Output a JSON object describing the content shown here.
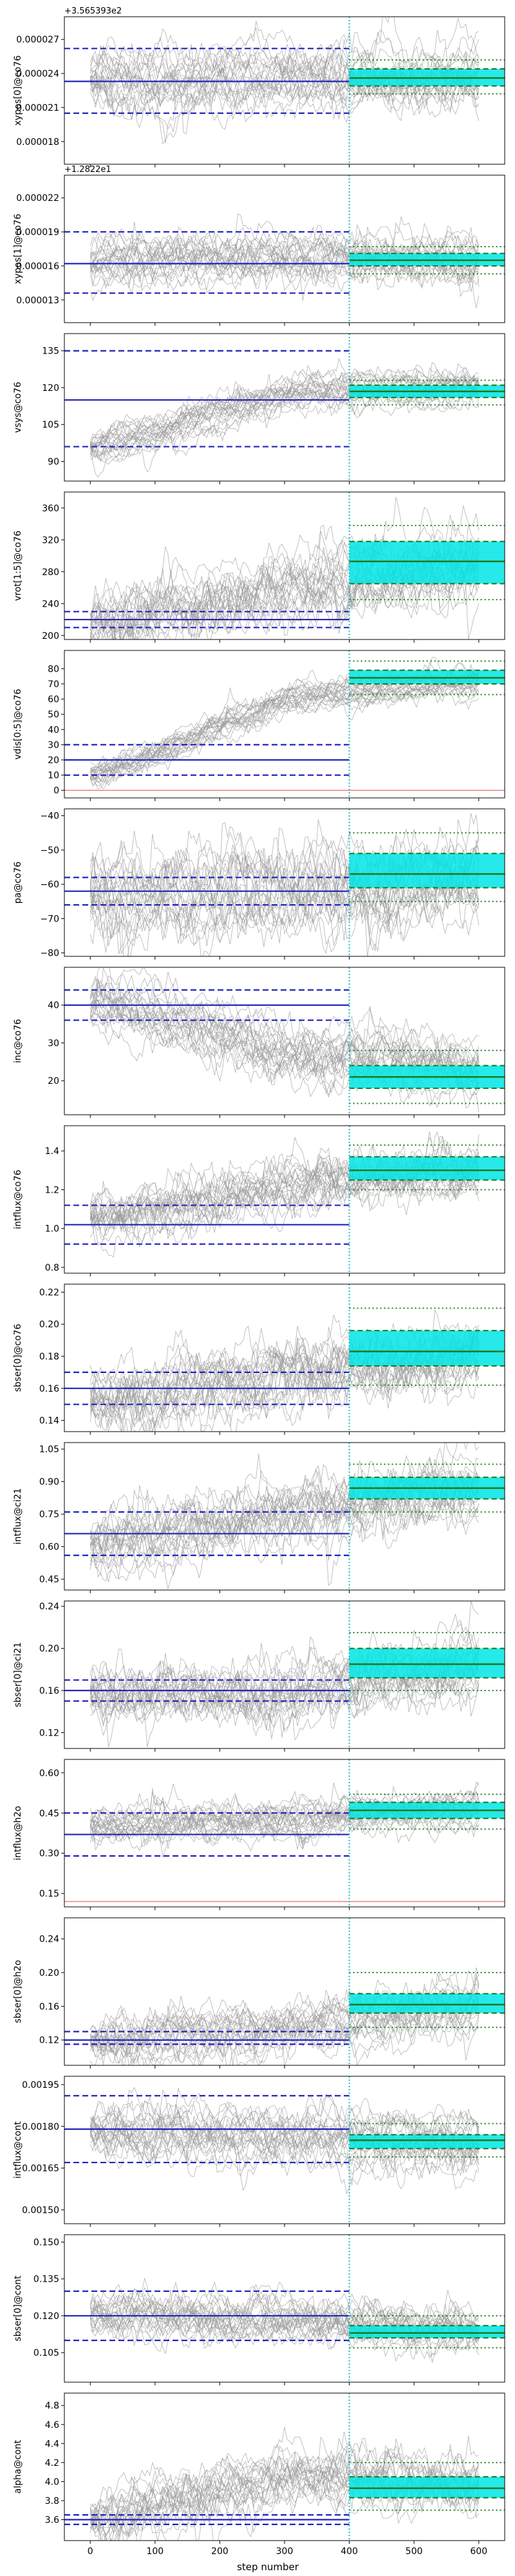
{
  "figure": {
    "xlabel": "step number",
    "xlim": [
      -40,
      640
    ],
    "xticks": [
      0,
      100,
      200,
      300,
      400,
      500,
      600
    ],
    "burnin_step": 400,
    "colors": {
      "trace": "#999999",
      "prior": "#2222bb",
      "posterior_fill": "#00e5e5",
      "posterior_line": "#1a7a1a",
      "burnin_line": "#17becf",
      "prior_floor": "#f08080"
    }
  },
  "chart_data": [
    {
      "type": "line",
      "ylabel": "xypos[0]@co76",
      "offset_text": "+3.565393e2",
      "ylim": [
        1.6e-05,
        2.9e-05
      ],
      "yticks": [
        1.8e-05,
        2.1e-05,
        2.4e-05,
        2.7e-05
      ],
      "ytick_labels": [
        "0.000018",
        "0.000021",
        "0.000024",
        "0.000027"
      ],
      "start": 2.35e-05,
      "mid": 2.36e-05,
      "end": 2.36e-05,
      "noise": 1.1e-06,
      "prior": {
        "center": 2.33e-05,
        "lo": 2.05e-05,
        "hi": 2.62e-05
      },
      "posterior": {
        "center": 2.36e-05,
        "lo1": 2.29e-05,
        "hi1": 2.44e-05,
        "lo2": 2.22e-05,
        "hi2": 2.52e-05
      }
    },
    {
      "type": "line",
      "ylabel": "xypos[1]@co76",
      "offset_text": "+1.2822e1",
      "ylim": [
        1.1e-05,
        2.4e-05
      ],
      "yticks": [
        1.3e-05,
        1.6e-05,
        1.9e-05,
        2.2e-05
      ],
      "ytick_labels": [
        "0.000013",
        "0.000016",
        "0.000019",
        "0.000022"
      ],
      "start": 1.62e-05,
      "mid": 1.66e-05,
      "end": 1.65e-05,
      "noise": 9e-07,
      "prior": {
        "center": 1.62e-05,
        "lo": 1.36e-05,
        "hi": 1.9e-05
      },
      "posterior": {
        "center": 1.65e-05,
        "lo1": 1.6e-05,
        "hi1": 1.71e-05,
        "lo2": 1.53e-05,
        "hi2": 1.77e-05
      }
    },
    {
      "type": "line",
      "ylabel": "vsys@co76",
      "offset_text": "",
      "ylim": [
        82,
        142
      ],
      "yticks": [
        90,
        105,
        120,
        135
      ],
      "ytick_labels": [
        "90",
        "105",
        "120",
        "135"
      ],
      "start": 95,
      "mid": 118,
      "end": 119,
      "noise": 3,
      "prior": {
        "center": 115,
        "lo": 96,
        "hi": 135
      },
      "posterior": {
        "center": 118.5,
        "lo1": 116,
        "hi1": 121,
        "lo2": 113,
        "hi2": 123
      }
    },
    {
      "type": "line",
      "ylabel": "vrot[1:5]@co76",
      "offset_text": "",
      "ylim": [
        195,
        380
      ],
      "yticks": [
        200,
        240,
        280,
        320,
        360
      ],
      "ytick_labels": [
        "200",
        "240",
        "280",
        "320",
        "360"
      ],
      "start": 215,
      "mid": 262,
      "end": 290,
      "noise": 18,
      "prior": {
        "center": 220,
        "lo": 210,
        "hi": 230
      },
      "posterior": {
        "center": 293,
        "lo1": 265,
        "hi1": 318,
        "lo2": 245,
        "hi2": 338
      }
    },
    {
      "type": "line",
      "ylabel": "vdis[0:5]@co76",
      "offset_text": "",
      "ylim": [
        -5,
        92
      ],
      "yticks": [
        0,
        10,
        20,
        30,
        40,
        50,
        60,
        70,
        80
      ],
      "ytick_labels": [
        "0",
        "10",
        "20",
        "30",
        "40",
        "50",
        "60",
        "70",
        "80"
      ],
      "start": 10,
      "mid": 62,
      "end": 72,
      "noise": 4,
      "prior": {
        "center": 20,
        "lo": 10,
        "hi": 30
      },
      "posterior": {
        "center": 74,
        "lo1": 70,
        "hi1": 79,
        "lo2": 63,
        "hi2": 85
      },
      "floor": 0
    },
    {
      "type": "line",
      "ylabel": "pa@co76",
      "offset_text": "",
      "ylim": [
        -81,
        -38
      ],
      "yticks": [
        -80,
        -70,
        -60,
        -50,
        -40
      ],
      "ytick_labels": [
        "−80",
        "−70",
        "−60",
        "−50",
        "−40"
      ],
      "start": -62,
      "mid": -60,
      "end": -58,
      "noise": 5,
      "prior": {
        "center": -62,
        "lo": -66,
        "hi": -58
      },
      "posterior": {
        "center": -57,
        "lo1": -61,
        "hi1": -51,
        "lo2": -65,
        "hi2": -45
      }
    },
    {
      "type": "line",
      "ylabel": "inc@co76",
      "offset_text": "",
      "ylim": [
        11,
        50
      ],
      "yticks": [
        20,
        30,
        40
      ],
      "ytick_labels": [
        "20",
        "30",
        "40"
      ],
      "start": 40,
      "mid": 27,
      "end": 22,
      "noise": 3,
      "prior": {
        "center": 40,
        "lo": 36,
        "hi": 44
      },
      "posterior": {
        "center": 21,
        "lo1": 18,
        "hi1": 24,
        "lo2": 14,
        "hi2": 28
      }
    },
    {
      "type": "line",
      "ylabel": "intflux@co76",
      "offset_text": "",
      "ylim": [
        0.77,
        1.53
      ],
      "yticks": [
        0.8,
        1.0,
        1.2,
        1.4
      ],
      "ytick_labels": [
        "0.8",
        "1.0",
        "1.2",
        "1.4"
      ],
      "start": 1.05,
      "mid": 1.22,
      "end": 1.31,
      "noise": 0.06,
      "prior": {
        "center": 1.02,
        "lo": 0.92,
        "hi": 1.12
      },
      "posterior": {
        "center": 1.3,
        "lo1": 1.25,
        "hi1": 1.37,
        "lo2": 1.2,
        "hi2": 1.43
      }
    },
    {
      "type": "line",
      "ylabel": "sbser[0]@co76",
      "offset_text": "",
      "ylim": [
        0.133,
        0.225
      ],
      "yticks": [
        0.14,
        0.16,
        0.18,
        0.2,
        0.22
      ],
      "ytick_labels": [
        "0.14",
        "0.16",
        "0.18",
        "0.20",
        "0.22"
      ],
      "start": 0.155,
      "mid": 0.172,
      "end": 0.182,
      "noise": 0.009,
      "prior": {
        "center": 0.16,
        "lo": 0.15,
        "hi": 0.17
      },
      "posterior": {
        "center": 0.183,
        "lo1": 0.174,
        "hi1": 0.196,
        "lo2": 0.162,
        "hi2": 0.21
      }
    },
    {
      "type": "line",
      "ylabel": "intflux@ci21",
      "offset_text": "",
      "ylim": [
        0.4,
        1.08
      ],
      "yticks": [
        0.45,
        0.6,
        0.75,
        0.9,
        1.05
      ],
      "ytick_labels": [
        "0.45",
        "0.60",
        "0.75",
        "0.90",
        "1.05"
      ],
      "start": 0.6,
      "mid": 0.76,
      "end": 0.87,
      "noise": 0.06,
      "prior": {
        "center": 0.66,
        "lo": 0.56,
        "hi": 0.76
      },
      "posterior": {
        "center": 0.87,
        "lo1": 0.82,
        "hi1": 0.92,
        "lo2": 0.76,
        "hi2": 0.98
      }
    },
    {
      "type": "line",
      "ylabel": "sbser[0]@ci21",
      "offset_text": "",
      "ylim": [
        0.105,
        0.245
      ],
      "yticks": [
        0.12,
        0.16,
        0.2,
        0.24
      ],
      "ytick_labels": [
        "0.12",
        "0.16",
        "0.20",
        "0.24"
      ],
      "start": 0.16,
      "mid": 0.16,
      "end": 0.19,
      "noise": 0.012,
      "prior": {
        "center": 0.16,
        "lo": 0.15,
        "hi": 0.17
      },
      "posterior": {
        "center": 0.185,
        "lo1": 0.172,
        "hi1": 0.2,
        "lo2": 0.16,
        "hi2": 0.215
      }
    },
    {
      "type": "line",
      "ylabel": "intflux@h2o",
      "offset_text": "",
      "ylim": [
        0.1,
        0.65
      ],
      "yticks": [
        0.15,
        0.3,
        0.45,
        0.6
      ],
      "ytick_labels": [
        "0.15",
        "0.30",
        "0.45",
        "0.60"
      ],
      "start": 0.4,
      "mid": 0.42,
      "end": 0.46,
      "noise": 0.03,
      "prior": {
        "center": 0.37,
        "lo": 0.29,
        "hi": 0.45
      },
      "posterior": {
        "center": 0.46,
        "lo1": 0.43,
        "hi1": 0.49,
        "lo2": 0.39,
        "hi2": 0.52
      },
      "floor": 0.12
    },
    {
      "type": "line",
      "ylabel": "sbser[0]@h2o",
      "offset_text": "",
      "ylim": [
        0.09,
        0.265
      ],
      "yticks": [
        0.12,
        0.16,
        0.2,
        0.24
      ],
      "ytick_labels": [
        "0.12",
        "0.16",
        "0.20",
        "0.24"
      ],
      "start": 0.12,
      "mid": 0.135,
      "end": 0.165,
      "noise": 0.012,
      "prior": {
        "center": 0.12,
        "lo": 0.115,
        "hi": 0.13
      },
      "posterior": {
        "center": 0.162,
        "lo1": 0.152,
        "hi1": 0.175,
        "lo2": 0.135,
        "hi2": 0.2
      }
    },
    {
      "type": "line",
      "ylabel": "intflux@cont",
      "offset_text": "",
      "ylim": [
        0.00145,
        0.00198
      ],
      "yticks": [
        0.0015,
        0.00165,
        0.0018,
        0.00195
      ],
      "ytick_labels": [
        "0.00150",
        "0.00165",
        "0.00180",
        "0.00195"
      ],
      "start": 0.00179,
      "mid": 0.00178,
      "end": 0.00175,
      "noise": 4e-05,
      "prior": {
        "center": 0.00179,
        "lo": 0.00167,
        "hi": 0.00191
      },
      "posterior": {
        "center": 0.00175,
        "lo1": 0.00172,
        "hi1": 0.00177,
        "lo2": 0.00169,
        "hi2": 0.00181
      }
    },
    {
      "type": "line",
      "ylabel": "sbser[0]@cont",
      "offset_text": "",
      "ylim": [
        0.093,
        0.153
      ],
      "yticks": [
        0.105,
        0.12,
        0.135,
        0.15
      ],
      "ytick_labels": [
        "0.105",
        "0.120",
        "0.135",
        "0.150"
      ],
      "start": 0.12,
      "mid": 0.117,
      "end": 0.113,
      "noise": 0.004,
      "prior": {
        "center": 0.12,
        "lo": 0.11,
        "hi": 0.13
      },
      "posterior": {
        "center": 0.113,
        "lo1": 0.111,
        "hi1": 0.116,
        "lo2": 0.107,
        "hi2": 0.12
      }
    },
    {
      "type": "line",
      "ylabel": "alpha@cont",
      "offset_text": "",
      "ylim": [
        3.38,
        4.93
      ],
      "yticks": [
        3.6,
        3.8,
        4.0,
        4.2,
        4.4,
        4.6,
        4.8
      ],
      "ytick_labels": [
        "3.6",
        "3.8",
        "4.0",
        "4.2",
        "4.4",
        "4.6",
        "4.8"
      ],
      "start": 3.6,
      "mid": 4.05,
      "end": 3.95,
      "noise": 0.12,
      "prior": {
        "center": 3.6,
        "lo": 3.55,
        "hi": 3.65
      },
      "posterior": {
        "center": 3.93,
        "lo1": 3.83,
        "hi1": 4.05,
        "lo2": 3.7,
        "hi2": 4.2
      }
    }
  ]
}
